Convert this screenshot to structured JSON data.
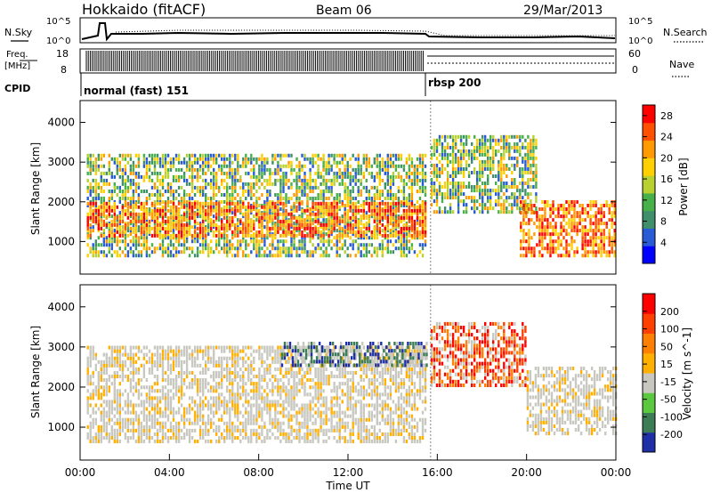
{
  "header": {
    "station": "Hokkaido (fitACF)",
    "beam": "Beam 06",
    "date": "29/Mar/2013"
  },
  "top_panels": {
    "nsky_label": "N.Sky",
    "nsearch_label": "N.Search",
    "nsky_ticks": [
      "10^5",
      "10^0"
    ],
    "nsearch_ticks": [
      "10^5",
      "10^0"
    ],
    "freq_label_line1": "Freq.",
    "freq_label_line2": "[MHz]",
    "freq_ticks": [
      "18",
      "8"
    ],
    "nave_label": "Nave",
    "nave_ticks": [
      "60",
      "0"
    ],
    "cpid_label": "CPID",
    "modes": [
      {
        "name": "normal (fast) 151",
        "start_hour": 0,
        "end_hour": 15.7
      },
      {
        "name": "rbsp 200",
        "start_hour": 15.7,
        "end_hour": 24
      }
    ]
  },
  "chart_data": [
    {
      "type": "heatmap",
      "name": "power",
      "ylabel": "Slant Range [km]",
      "yticks": [
        1000,
        2000,
        3000,
        4000
      ],
      "ylim": [
        180,
        4550
      ],
      "xlim": [
        0,
        24
      ],
      "colorbar": {
        "label": "Power [dB]",
        "ticks": [
          4,
          8,
          12,
          16,
          20,
          24,
          28
        ],
        "range": [
          0,
          30
        ],
        "colors": [
          "#0000ff",
          "#2a5bd7",
          "#3f8f6b",
          "#48b048",
          "#b8d030",
          "#ffd000",
          "#ff9a00",
          "#ff5000",
          "#ff0000"
        ]
      },
      "regions": [
        {
          "t0": 0.3,
          "t1": 15.5,
          "r0": 600,
          "r1": 3200,
          "level": "mid"
        },
        {
          "t0": 0.3,
          "t1": 15.5,
          "r0": 1100,
          "r1": 2000,
          "level": "high"
        },
        {
          "t0": 15.7,
          "t1": 20.5,
          "r0": 1700,
          "r1": 3600,
          "level": "mid"
        },
        {
          "t0": 19.7,
          "t1": 24,
          "r0": 600,
          "r1": 2000,
          "level": "high"
        }
      ]
    },
    {
      "type": "heatmap",
      "name": "velocity",
      "ylabel": "Slant Range [km]",
      "xlabel": "Time UT",
      "yticks": [
        1000,
        2000,
        3000,
        4000
      ],
      "ylim": [
        180,
        4550
      ],
      "xlim": [
        0,
        24
      ],
      "xticks": [
        "00:00",
        "04:00",
        "08:00",
        "12:00",
        "16:00",
        "20:00",
        "00:00"
      ],
      "colorbar": {
        "label": "Velocity [m s^-1]",
        "ticks": [
          200,
          100,
          50,
          15,
          -15,
          -50,
          -100,
          -200
        ],
        "colors": [
          "#1f2fa8",
          "#3d7d56",
          "#5cc840",
          "#c8c8c0",
          "#ffb000",
          "#ff8000",
          "#ff4000",
          "#ff0000"
        ]
      },
      "regions": [
        {
          "t0": 0.3,
          "t1": 15.5,
          "r0": 600,
          "r1": 3000,
          "level": "ground"
        },
        {
          "t0": 9,
          "t1": 15.5,
          "r0": 2500,
          "r1": 3100,
          "level": "toward"
        },
        {
          "t0": 15.7,
          "t1": 20,
          "r0": 2000,
          "r1": 3600,
          "level": "away"
        },
        {
          "t0": 20,
          "t1": 24,
          "r0": 800,
          "r1": 2500,
          "level": "ground"
        }
      ]
    }
  ]
}
